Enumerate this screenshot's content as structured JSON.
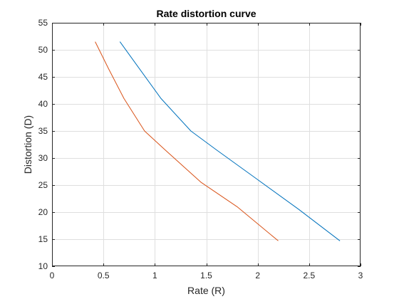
{
  "chart_data": {
    "type": "line",
    "title": "Rate distortion curve",
    "xlabel": "Rate (R)",
    "ylabel": "Distortion (D)",
    "xlim": [
      0,
      3
    ],
    "ylim": [
      10,
      55
    ],
    "xticks": [
      0,
      0.5,
      1,
      1.5,
      2,
      2.5,
      3
    ],
    "xtick_labels": [
      "0",
      "0.5",
      "1",
      "1.5",
      "2",
      "2.5",
      "3"
    ],
    "yticks": [
      10,
      15,
      20,
      25,
      30,
      35,
      40,
      45,
      50,
      55
    ],
    "ytick_labels": [
      "10",
      "15",
      "20",
      "25",
      "30",
      "35",
      "40",
      "45",
      "50",
      "55"
    ],
    "grid": true,
    "legend": "none",
    "series": [
      {
        "color": "#0072BD",
        "x": [
          0.66,
          0.85,
          1.06,
          1.35,
          1.6,
          2.0,
          2.4,
          2.8
        ],
        "y": [
          51.5,
          46.5,
          41.0,
          35.0,
          31.5,
          26.0,
          20.5,
          14.7
        ]
      },
      {
        "color": "#D95319",
        "x": [
          0.42,
          0.55,
          0.7,
          0.9,
          1.1,
          1.45,
          1.8,
          2.2
        ],
        "y": [
          51.5,
          46.5,
          41.0,
          35.0,
          31.5,
          25.5,
          21.0,
          14.7
        ]
      }
    ]
  }
}
